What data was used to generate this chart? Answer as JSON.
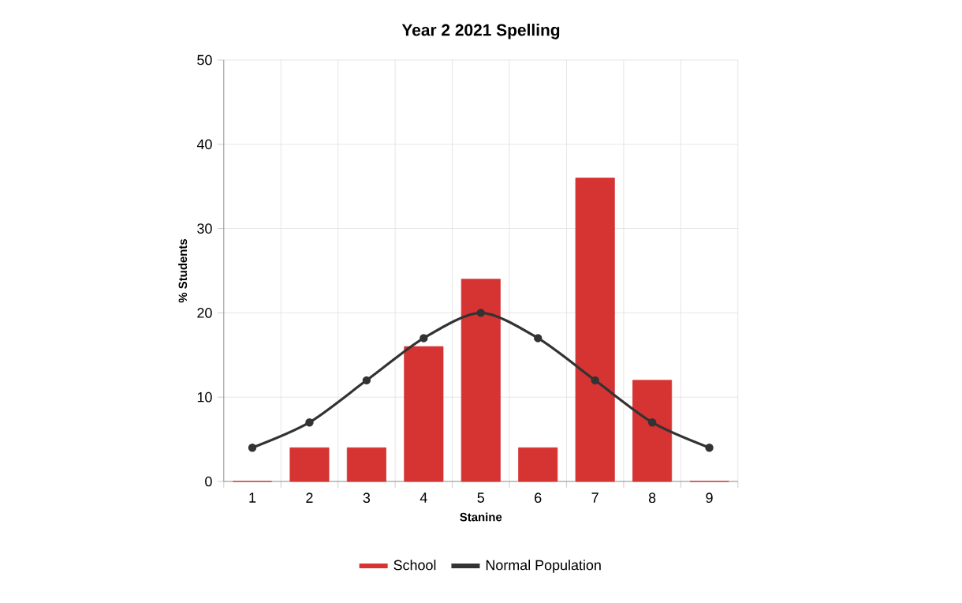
{
  "chart_data": {
    "type": "bar",
    "title": "Year 2 2021 Spelling",
    "xlabel": "Stanine",
    "ylabel": "% Students",
    "categories": [
      "1",
      "2",
      "3",
      "4",
      "5",
      "6",
      "7",
      "8",
      "9"
    ],
    "series": [
      {
        "name": "School",
        "color": "#d63333",
        "values": [
          0,
          4,
          4,
          16,
          24,
          4,
          36,
          12,
          0
        ]
      },
      {
        "name": "Normal Population",
        "type": "line",
        "color": "#333333",
        "marker": "circle",
        "values": [
          4,
          7,
          12,
          17,
          20,
          17,
          12,
          7,
          4
        ]
      }
    ],
    "ylim": [
      0,
      50
    ],
    "yticks": [
      0,
      10,
      20,
      30,
      40,
      50
    ],
    "grid": true,
    "legend": "bottom"
  }
}
